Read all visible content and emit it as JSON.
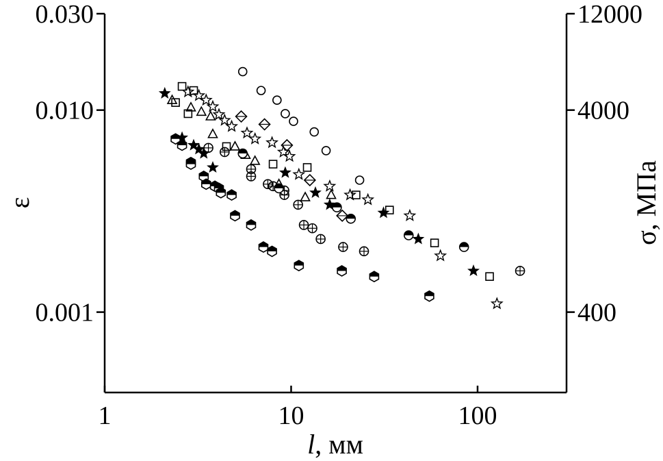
{
  "chart_data": {
    "type": "scatter",
    "title": "",
    "x_scale": "log",
    "y_scale": "log",
    "xlim": [
      1,
      300
    ],
    "ylim": [
      0.0004,
      0.03
    ],
    "xlabel_italic": "l",
    "xlabel_rest": ", мм",
    "ylabel": "ε",
    "y2label": "σ, МПа",
    "grid": false,
    "legend": "none",
    "x_ticks": [
      {
        "value": 1,
        "label": "1"
      },
      {
        "value": 10,
        "label": "10"
      },
      {
        "value": 100,
        "label": "100"
      }
    ],
    "y_ticks": [
      {
        "value": 0.03,
        "label": "0.030"
      },
      {
        "value": 0.01,
        "label": "0.010"
      },
      {
        "value": 0.001,
        "label": "0.001"
      }
    ],
    "y2_ticks": [
      {
        "value": 0.03,
        "label": "12000"
      },
      {
        "value": 0.01,
        "label": "4000"
      },
      {
        "value": 0.001,
        "label": "400"
      }
    ],
    "series": [
      {
        "marker": "circle",
        "points": [
          [
            5.5,
            0.0155
          ],
          [
            6.9,
            0.0125
          ],
          [
            8.4,
            0.0112
          ],
          [
            9.3,
            0.0096
          ],
          [
            10.3,
            0.0088
          ],
          [
            13.3,
            0.0078
          ],
          [
            15.4,
            0.0063
          ],
          [
            23.3,
            0.0045
          ]
        ]
      },
      {
        "marker": "square",
        "points": [
          [
            2.4,
            0.0109
          ],
          [
            2.6,
            0.0131
          ],
          [
            2.8,
            0.0096
          ],
          [
            3.0,
            0.0125
          ],
          [
            4.5,
            0.0066
          ],
          [
            8.0,
            0.0054
          ],
          [
            12.2,
            0.0052
          ],
          [
            22.3,
            0.0038
          ],
          [
            33.7,
            0.0032
          ],
          [
            58.8,
            0.0022
          ],
          [
            116,
            0.0015
          ]
        ]
      },
      {
        "marker": "triangle",
        "points": [
          [
            2.3,
            0.0112
          ],
          [
            2.9,
            0.0103
          ],
          [
            3.3,
            0.0098
          ],
          [
            3.7,
            0.0093
          ],
          [
            3.8,
            0.0076
          ],
          [
            5.0,
            0.0066
          ],
          [
            5.7,
            0.006
          ],
          [
            6.4,
            0.0056
          ],
          [
            8.6,
            0.0043
          ],
          [
            11.9,
            0.0037
          ],
          [
            16.4,
            0.0038
          ]
        ]
      },
      {
        "marker": "star-open",
        "points": [
          [
            2.8,
            0.0123
          ],
          [
            3.2,
            0.0118
          ],
          [
            3.5,
            0.0112
          ],
          [
            3.8,
            0.0104
          ],
          [
            4.1,
            0.0095
          ],
          [
            4.4,
            0.0089
          ],
          [
            4.8,
            0.0083
          ],
          [
            5.8,
            0.0077
          ],
          [
            6.4,
            0.0072
          ],
          [
            7.9,
            0.0069
          ],
          [
            9.1,
            0.0062
          ],
          [
            9.8,
            0.0059
          ],
          [
            11.0,
            0.0048
          ],
          [
            16.1,
            0.0042
          ],
          [
            20.7,
            0.0038
          ],
          [
            25.8,
            0.0036
          ],
          [
            43.3,
            0.003
          ],
          [
            63.2,
            0.0019
          ],
          [
            127,
            0.0011
          ]
        ]
      },
      {
        "marker": "star-filled",
        "points": [
          [
            2.1,
            0.0121
          ],
          [
            2.6,
            0.0073
          ],
          [
            3.0,
            0.0067
          ],
          [
            3.2,
            0.0064
          ],
          [
            3.4,
            0.0061
          ],
          [
            3.8,
            0.0052
          ],
          [
            9.3,
            0.0049
          ],
          [
            13.5,
            0.0039
          ],
          [
            16.1,
            0.0034
          ],
          [
            31.3,
            0.0031
          ],
          [
            48.1,
            0.0023
          ],
          [
            95.1,
            0.0016
          ]
        ]
      },
      {
        "marker": "diamond",
        "points": [
          [
            5.4,
            0.0093
          ],
          [
            7.2,
            0.0085
          ],
          [
            9.5,
            0.0067
          ],
          [
            18.8,
            0.003
          ],
          [
            12.6,
            0.0045
          ]
        ]
      },
      {
        "marker": "crossed-circle",
        "points": [
          [
            3.6,
            0.0065
          ],
          [
            4.4,
            0.0062
          ],
          [
            6.1,
            0.0051
          ],
          [
            6.1,
            0.0047
          ],
          [
            7.5,
            0.0043
          ],
          [
            8.0,
            0.0042
          ],
          [
            9.2,
            0.004
          ],
          [
            9.2,
            0.0038
          ],
          [
            10.9,
            0.0034
          ],
          [
            11.7,
            0.0027
          ],
          [
            13.0,
            0.0026
          ],
          [
            14.4,
            0.0023
          ],
          [
            19.0,
            0.0021
          ],
          [
            24.6,
            0.002
          ],
          [
            169,
            0.0016
          ]
        ]
      },
      {
        "marker": "half-filled-circle",
        "points": [
          [
            5.5,
            0.0061
          ],
          [
            8.6,
            0.0041
          ],
          [
            17.6,
            0.0033
          ],
          [
            20.9,
            0.0029
          ],
          [
            42.7,
            0.0024
          ],
          [
            84.6,
            0.0021
          ]
        ]
      },
      {
        "marker": "half-filled-hexagon",
        "points": [
          [
            2.4,
            0.0072
          ],
          [
            2.6,
            0.0067
          ],
          [
            2.9,
            0.0055
          ],
          [
            2.9,
            0.0054
          ],
          [
            3.4,
            0.0047
          ],
          [
            3.5,
            0.0043
          ],
          [
            3.9,
            0.0042
          ],
          [
            4.1,
            0.0041
          ],
          [
            4.2,
            0.0039
          ],
          [
            4.8,
            0.0038
          ],
          [
            5.0,
            0.003
          ],
          [
            6.1,
            0.0027
          ],
          [
            7.1,
            0.0021
          ],
          [
            7.9,
            0.002
          ],
          [
            11.0,
            0.0017
          ],
          [
            18.7,
            0.0016
          ],
          [
            27.9,
            0.0015
          ],
          [
            55.1,
            0.0012
          ]
        ]
      }
    ]
  }
}
